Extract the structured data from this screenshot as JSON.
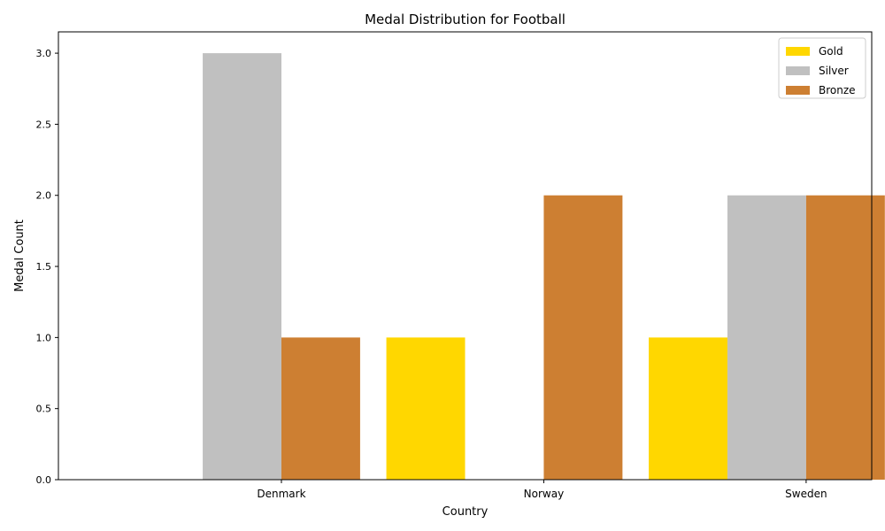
{
  "chart_data": {
    "type": "bar",
    "title": "Medal Distribution for Football",
    "xlabel": "Country",
    "ylabel": "Medal Count",
    "categories": [
      "Denmark",
      "Norway",
      "Sweden"
    ],
    "series": [
      {
        "name": "Gold",
        "color": "#ffd700",
        "values": [
          0,
          1,
          1
        ]
      },
      {
        "name": "Silver",
        "color": "#c0c0c0",
        "values": [
          3,
          0,
          2
        ]
      },
      {
        "name": "Bronze",
        "color": "#cd7f32",
        "values": [
          1,
          2,
          2
        ]
      }
    ],
    "ylim": [
      0,
      3.15
    ],
    "yticks": [
      "0.0",
      "0.5",
      "1.0",
      "1.5",
      "2.0",
      "2.5",
      "3.0"
    ],
    "grid": false,
    "legend_position": "top-right"
  }
}
